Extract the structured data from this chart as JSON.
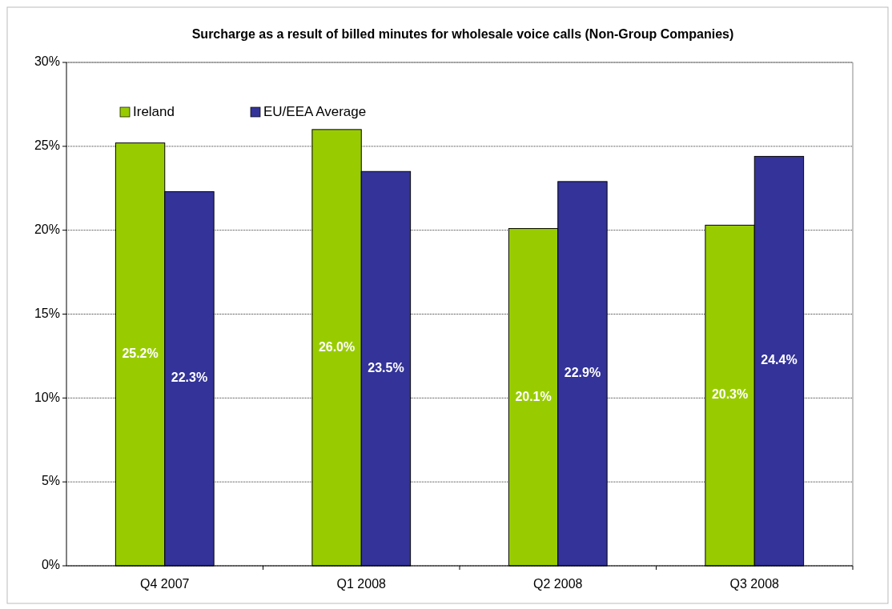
{
  "chart_data": {
    "type": "bar",
    "title": "Surcharge as a result of billed minutes for wholesale voice calls (Non-Group Companies)",
    "categories": [
      "Q4 2007",
      "Q1 2008",
      "Q2 2008",
      "Q3 2008"
    ],
    "series": [
      {
        "name": "Ireland",
        "color": "#99cc00",
        "values": [
          25.2,
          26.0,
          20.1,
          20.3
        ],
        "value_labels": [
          "25.2%",
          "26.0%",
          "20.1%",
          "20.3%"
        ]
      },
      {
        "name": "EU/EEA Average",
        "color": "#333399",
        "values": [
          22.3,
          23.5,
          22.9,
          24.4
        ],
        "value_labels": [
          "22.3%",
          "23.5%",
          "22.9%",
          "24.4%"
        ]
      }
    ],
    "ylim": [
      0,
      30
    ],
    "yticks": [
      {
        "value": 0,
        "label": "0%"
      },
      {
        "value": 5,
        "label": "5%"
      },
      {
        "value": 10,
        "label": "10%"
      },
      {
        "value": 15,
        "label": "15%"
      },
      {
        "value": 20,
        "label": "20%"
      },
      {
        "value": 25,
        "label": "25%"
      },
      {
        "value": 30,
        "label": "30%"
      }
    ],
    "grid": "y",
    "legend": "top left"
  }
}
